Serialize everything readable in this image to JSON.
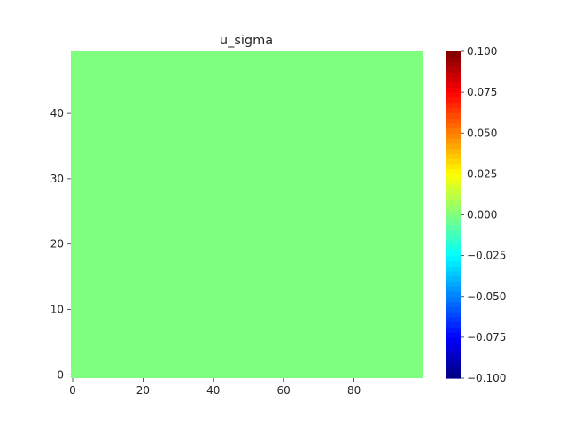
{
  "chart_data": {
    "type": "heatmap",
    "title": "u_sigma",
    "xlabel": "",
    "ylabel": "",
    "grid": false,
    "colormap": "jet",
    "field_value": 0.0,
    "field_color": "#7fff7f",
    "xlim": [
      -0.5,
      99.5
    ],
    "ylim": [
      -0.5,
      49.5
    ],
    "x_ticks": [
      0,
      20,
      40,
      60,
      80
    ],
    "x_tick_labels": [
      "0",
      "20",
      "40",
      "60",
      "80"
    ],
    "y_ticks": [
      0,
      10,
      20,
      30,
      40
    ],
    "y_tick_labels": [
      "0",
      "10",
      "20",
      "30",
      "40"
    ],
    "colorbar": {
      "position": "right",
      "range": [
        -0.1,
        0.1
      ],
      "ticks": [
        -0.1,
        -0.075,
        -0.05,
        -0.025,
        0.0,
        0.025,
        0.05,
        0.075,
        0.1
      ],
      "tick_labels": [
        "−0.100",
        "−0.075",
        "−0.050",
        "−0.025",
        "0.000",
        "0.025",
        "0.050",
        "0.075",
        "0.100"
      ]
    }
  }
}
